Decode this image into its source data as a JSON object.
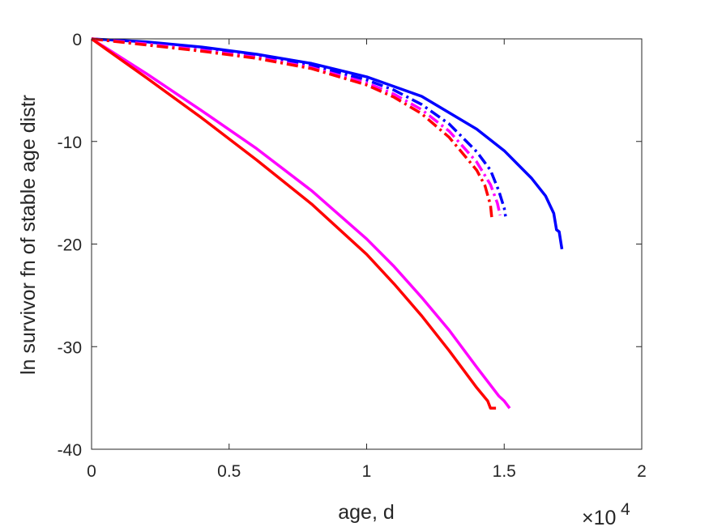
{
  "chart_data": {
    "type": "line",
    "title": "",
    "xlabel": "age, d",
    "ylabel": "ln survivor fn of stable age distr",
    "x_exponent_label": "×10",
    "x_exponent_power": "4",
    "xlim": [
      0,
      20000
    ],
    "ylim": [
      -40,
      0
    ],
    "x_ticks": [
      0,
      5000,
      10000,
      15000,
      20000
    ],
    "x_tick_labels": [
      "0",
      "0.5",
      "1",
      "1.5",
      "2"
    ],
    "y_ticks": [
      0,
      -10,
      -20,
      -30,
      -40
    ],
    "y_tick_labels": [
      "0",
      "-10",
      "-20",
      "-30",
      "-40"
    ],
    "grid": false,
    "legend": "none",
    "series": [
      {
        "color": "#0000ff",
        "style": "solid",
        "x": [
          0,
          2000,
          4000,
          6000,
          8000,
          10000,
          12000,
          14000,
          15000,
          16000,
          16500,
          16800,
          16900,
          17000,
          17100
        ],
        "y": [
          0,
          -0.3,
          -0.8,
          -1.5,
          -2.4,
          -3.7,
          -5.6,
          -8.8,
          -10.9,
          -13.6,
          -15.3,
          -17.0,
          -18.6,
          -18.8,
          -20.5
        ]
      },
      {
        "color": "#0000ff",
        "style": "dashdot",
        "x": [
          0,
          2000,
          4000,
          6000,
          8000,
          10000,
          11000,
          12000,
          13000,
          14000,
          14500,
          14800,
          15000,
          15050
        ],
        "y": [
          0,
          -0.5,
          -1.0,
          -1.7,
          -2.6,
          -4.0,
          -5.0,
          -6.4,
          -8.3,
          -11.0,
          -12.8,
          -14.8,
          -16.5,
          -17.3
        ]
      },
      {
        "color": "#ff00ff",
        "style": "dashdot",
        "x": [
          0,
          2000,
          4000,
          6000,
          8000,
          10000,
          11000,
          12000,
          13000,
          14000,
          14500,
          14750,
          14850
        ],
        "y": [
          0,
          -0.5,
          -1.1,
          -1.8,
          -2.8,
          -4.3,
          -5.4,
          -6.9,
          -9.0,
          -12.0,
          -14.2,
          -16.0,
          -17.2
        ]
      },
      {
        "color": "#ff0000",
        "style": "dashdot",
        "x": [
          0,
          2000,
          4000,
          6000,
          8000,
          10000,
          11000,
          12000,
          13000,
          14000,
          14300,
          14500,
          14550
        ],
        "y": [
          0,
          -0.6,
          -1.2,
          -1.9,
          -2.9,
          -4.5,
          -5.7,
          -7.3,
          -9.6,
          -12.8,
          -14.3,
          -16.2,
          -17.5
        ]
      },
      {
        "color": "#ff00ff",
        "style": "solid",
        "x": [
          0,
          1000,
          2000,
          4000,
          6000,
          8000,
          10000,
          11000,
          12000,
          13000,
          14000,
          14800,
          15000,
          15200
        ],
        "y": [
          0,
          -1.7,
          -3.4,
          -7.0,
          -10.7,
          -14.8,
          -19.5,
          -22.2,
          -25.2,
          -28.4,
          -32.0,
          -34.8,
          -35.3,
          -36.0
        ]
      },
      {
        "color": "#ff0000",
        "style": "solid",
        "x": [
          0,
          1000,
          2000,
          4000,
          6000,
          8000,
          10000,
          11000,
          12000,
          13000,
          14000,
          14400,
          14500,
          14700
        ],
        "y": [
          0,
          -1.9,
          -3.8,
          -7.7,
          -11.8,
          -16.1,
          -21.0,
          -23.9,
          -27.0,
          -30.4,
          -34.0,
          -35.3,
          -36.0,
          -36.0
        ]
      }
    ]
  }
}
